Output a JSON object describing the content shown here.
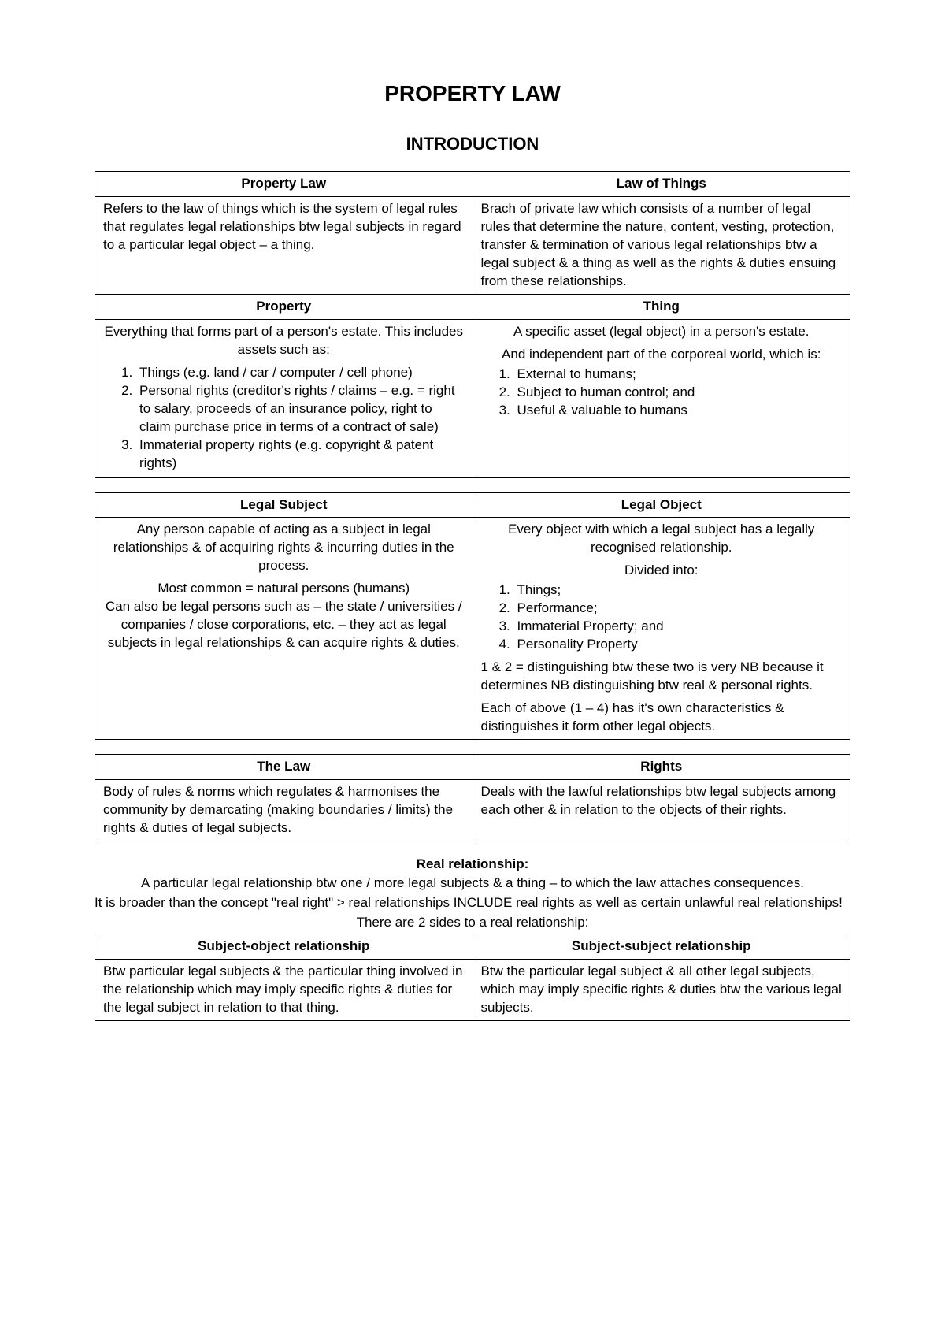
{
  "page": {
    "title": "PROPERTY LAW",
    "subtitle": "INTRODUCTION",
    "colors": {
      "background": "#ffffff",
      "text": "#000000",
      "border": "#000000"
    },
    "typography": {
      "font_family": "Arial",
      "body_fontsize_pt": 12,
      "title_fontsize_pt": 20,
      "subtitle_fontsize_pt": 16
    }
  },
  "table1": {
    "row1": {
      "left_header": "Property Law",
      "right_header": "Law of Things",
      "left_body": "Refers to the law of things which is the system of legal rules that regulates legal relationships btw legal subjects in regard to a particular legal object – a thing.",
      "right_body": "Brach of private law which consists of a number of legal rules that determine the nature, content, vesting, protection, transfer & termination of various legal relationships btw a legal subject & a thing as well as the rights & duties ensuing from these relationships."
    },
    "row2": {
      "left_header": "Property",
      "right_header": "Thing",
      "left_intro": "Everything that forms part of a person's estate. This includes assets such as:",
      "left_list": [
        "Things (e.g. land / car / computer / cell phone)",
        "Personal rights (creditor's rights / claims – e.g. = right to salary, proceeds of an insurance policy, right to claim purchase price in terms of a contract of sale)",
        "Immaterial property rights (e.g. copyright & patent rights)"
      ],
      "right_p1": "A specific asset (legal object) in a person's estate.",
      "right_p2": "And independent part of the corporeal world, which is:",
      "right_list": [
        "External to humans;",
        "Subject to human control; and",
        "Useful & valuable to humans"
      ]
    }
  },
  "table2": {
    "left_header": "Legal Subject",
    "right_header": "Legal Object",
    "left_p1": "Any person capable of acting as a subject in legal relationships & of acquiring rights & incurring duties in the process.",
    "left_p2": "Most common = natural persons (humans)",
    "left_p3": "Can also be legal persons such as – the state / universities / companies / close corporations, etc. – they act as legal subjects in legal relationships & can acquire rights & duties.",
    "right_p1": "Every object with which a legal subject has a legally recognised relationship.",
    "right_p2": "Divided into:",
    "right_list": [
      "Things;",
      "Performance;",
      "Immaterial Property; and",
      "Personality Property"
    ],
    "right_p3": "1 & 2 = distinguishing btw these two is very NB because it determines NB distinguishing btw real & personal rights.",
    "right_p4": "Each of above (1 – 4) has it's own characteristics & distinguishes it form other legal objects."
  },
  "table3": {
    "left_header": "The Law",
    "right_header": "Rights",
    "left_body": "Body of rules & norms which regulates & harmonises the community by demarcating (making boundaries / limits) the rights & duties of legal subjects.",
    "right_body": "Deals with the lawful relationships btw legal subjects among each other & in relation to the objects of their rights."
  },
  "real_relationship": {
    "heading": "Real relationship:",
    "p1": "A particular legal relationship btw one / more legal subjects & a thing – to which the law attaches consequences.",
    "p2": "It is broader than the concept \"real right\" > real relationships INCLUDE real rights as well as certain unlawful real relationships!",
    "p3": "There are 2 sides to a real relationship:"
  },
  "table4": {
    "left_header": "Subject-object relationship",
    "right_header": "Subject-subject relationship",
    "left_body": "Btw particular legal subjects & the particular thing involved in the relationship which may imply specific rights & duties for the legal subject in relation to that thing.",
    "right_body": "Btw the particular legal subject & all other legal subjects, which may imply specific rights & duties btw the various legal subjects."
  }
}
